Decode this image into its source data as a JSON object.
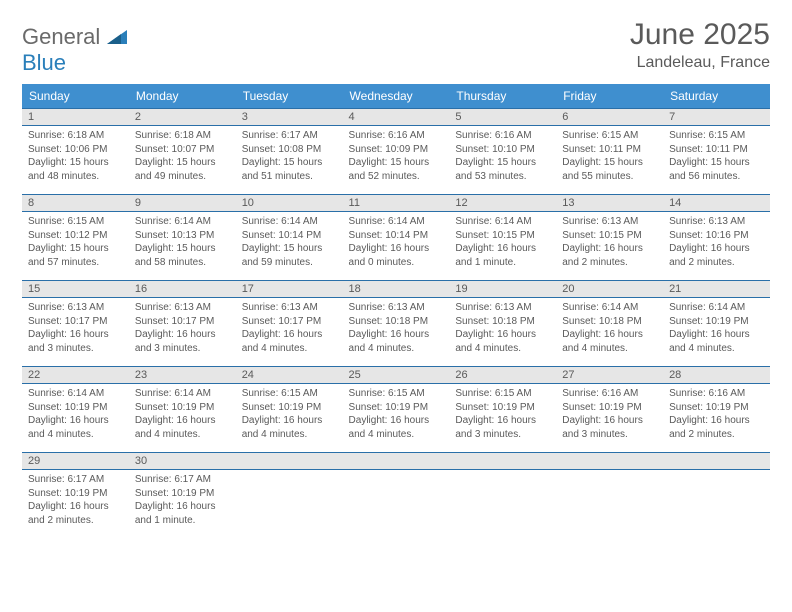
{
  "logo": {
    "text1": "General",
    "text2": "Blue"
  },
  "title": "June 2025",
  "location": "Landeleau, France",
  "colors": {
    "header_bg": "#3f8fcf",
    "header_text": "#ffffff",
    "daybar_bg": "#e6e6e6",
    "rule": "#2a6fa8",
    "body_text": "#5a5a5a",
    "logo_gray": "#6a6a6a",
    "logo_blue": "#2a7fba"
  },
  "weekdays": [
    "Sunday",
    "Monday",
    "Tuesday",
    "Wednesday",
    "Thursday",
    "Friday",
    "Saturday"
  ],
  "weeks": [
    [
      {
        "n": "1",
        "sr": "6:18 AM",
        "ss": "10:06 PM",
        "dl": "15 hours and 48 minutes."
      },
      {
        "n": "2",
        "sr": "6:18 AM",
        "ss": "10:07 PM",
        "dl": "15 hours and 49 minutes."
      },
      {
        "n": "3",
        "sr": "6:17 AM",
        "ss": "10:08 PM",
        "dl": "15 hours and 51 minutes."
      },
      {
        "n": "4",
        "sr": "6:16 AM",
        "ss": "10:09 PM",
        "dl": "15 hours and 52 minutes."
      },
      {
        "n": "5",
        "sr": "6:16 AM",
        "ss": "10:10 PM",
        "dl": "15 hours and 53 minutes."
      },
      {
        "n": "6",
        "sr": "6:15 AM",
        "ss": "10:11 PM",
        "dl": "15 hours and 55 minutes."
      },
      {
        "n": "7",
        "sr": "6:15 AM",
        "ss": "10:11 PM",
        "dl": "15 hours and 56 minutes."
      }
    ],
    [
      {
        "n": "8",
        "sr": "6:15 AM",
        "ss": "10:12 PM",
        "dl": "15 hours and 57 minutes."
      },
      {
        "n": "9",
        "sr": "6:14 AM",
        "ss": "10:13 PM",
        "dl": "15 hours and 58 minutes."
      },
      {
        "n": "10",
        "sr": "6:14 AM",
        "ss": "10:14 PM",
        "dl": "15 hours and 59 minutes."
      },
      {
        "n": "11",
        "sr": "6:14 AM",
        "ss": "10:14 PM",
        "dl": "16 hours and 0 minutes."
      },
      {
        "n": "12",
        "sr": "6:14 AM",
        "ss": "10:15 PM",
        "dl": "16 hours and 1 minute."
      },
      {
        "n": "13",
        "sr": "6:13 AM",
        "ss": "10:15 PM",
        "dl": "16 hours and 2 minutes."
      },
      {
        "n": "14",
        "sr": "6:13 AM",
        "ss": "10:16 PM",
        "dl": "16 hours and 2 minutes."
      }
    ],
    [
      {
        "n": "15",
        "sr": "6:13 AM",
        "ss": "10:17 PM",
        "dl": "16 hours and 3 minutes."
      },
      {
        "n": "16",
        "sr": "6:13 AM",
        "ss": "10:17 PM",
        "dl": "16 hours and 3 minutes."
      },
      {
        "n": "17",
        "sr": "6:13 AM",
        "ss": "10:17 PM",
        "dl": "16 hours and 4 minutes."
      },
      {
        "n": "18",
        "sr": "6:13 AM",
        "ss": "10:18 PM",
        "dl": "16 hours and 4 minutes."
      },
      {
        "n": "19",
        "sr": "6:13 AM",
        "ss": "10:18 PM",
        "dl": "16 hours and 4 minutes."
      },
      {
        "n": "20",
        "sr": "6:14 AM",
        "ss": "10:18 PM",
        "dl": "16 hours and 4 minutes."
      },
      {
        "n": "21",
        "sr": "6:14 AM",
        "ss": "10:19 PM",
        "dl": "16 hours and 4 minutes."
      }
    ],
    [
      {
        "n": "22",
        "sr": "6:14 AM",
        "ss": "10:19 PM",
        "dl": "16 hours and 4 minutes."
      },
      {
        "n": "23",
        "sr": "6:14 AM",
        "ss": "10:19 PM",
        "dl": "16 hours and 4 minutes."
      },
      {
        "n": "24",
        "sr": "6:15 AM",
        "ss": "10:19 PM",
        "dl": "16 hours and 4 minutes."
      },
      {
        "n": "25",
        "sr": "6:15 AM",
        "ss": "10:19 PM",
        "dl": "16 hours and 4 minutes."
      },
      {
        "n": "26",
        "sr": "6:15 AM",
        "ss": "10:19 PM",
        "dl": "16 hours and 3 minutes."
      },
      {
        "n": "27",
        "sr": "6:16 AM",
        "ss": "10:19 PM",
        "dl": "16 hours and 3 minutes."
      },
      {
        "n": "28",
        "sr": "6:16 AM",
        "ss": "10:19 PM",
        "dl": "16 hours and 2 minutes."
      }
    ],
    [
      {
        "n": "29",
        "sr": "6:17 AM",
        "ss": "10:19 PM",
        "dl": "16 hours and 2 minutes."
      },
      {
        "n": "30",
        "sr": "6:17 AM",
        "ss": "10:19 PM",
        "dl": "16 hours and 1 minute."
      },
      null,
      null,
      null,
      null,
      null
    ]
  ],
  "labels": {
    "sunrise": "Sunrise: ",
    "sunset": "Sunset: ",
    "daylight": "Daylight: "
  }
}
